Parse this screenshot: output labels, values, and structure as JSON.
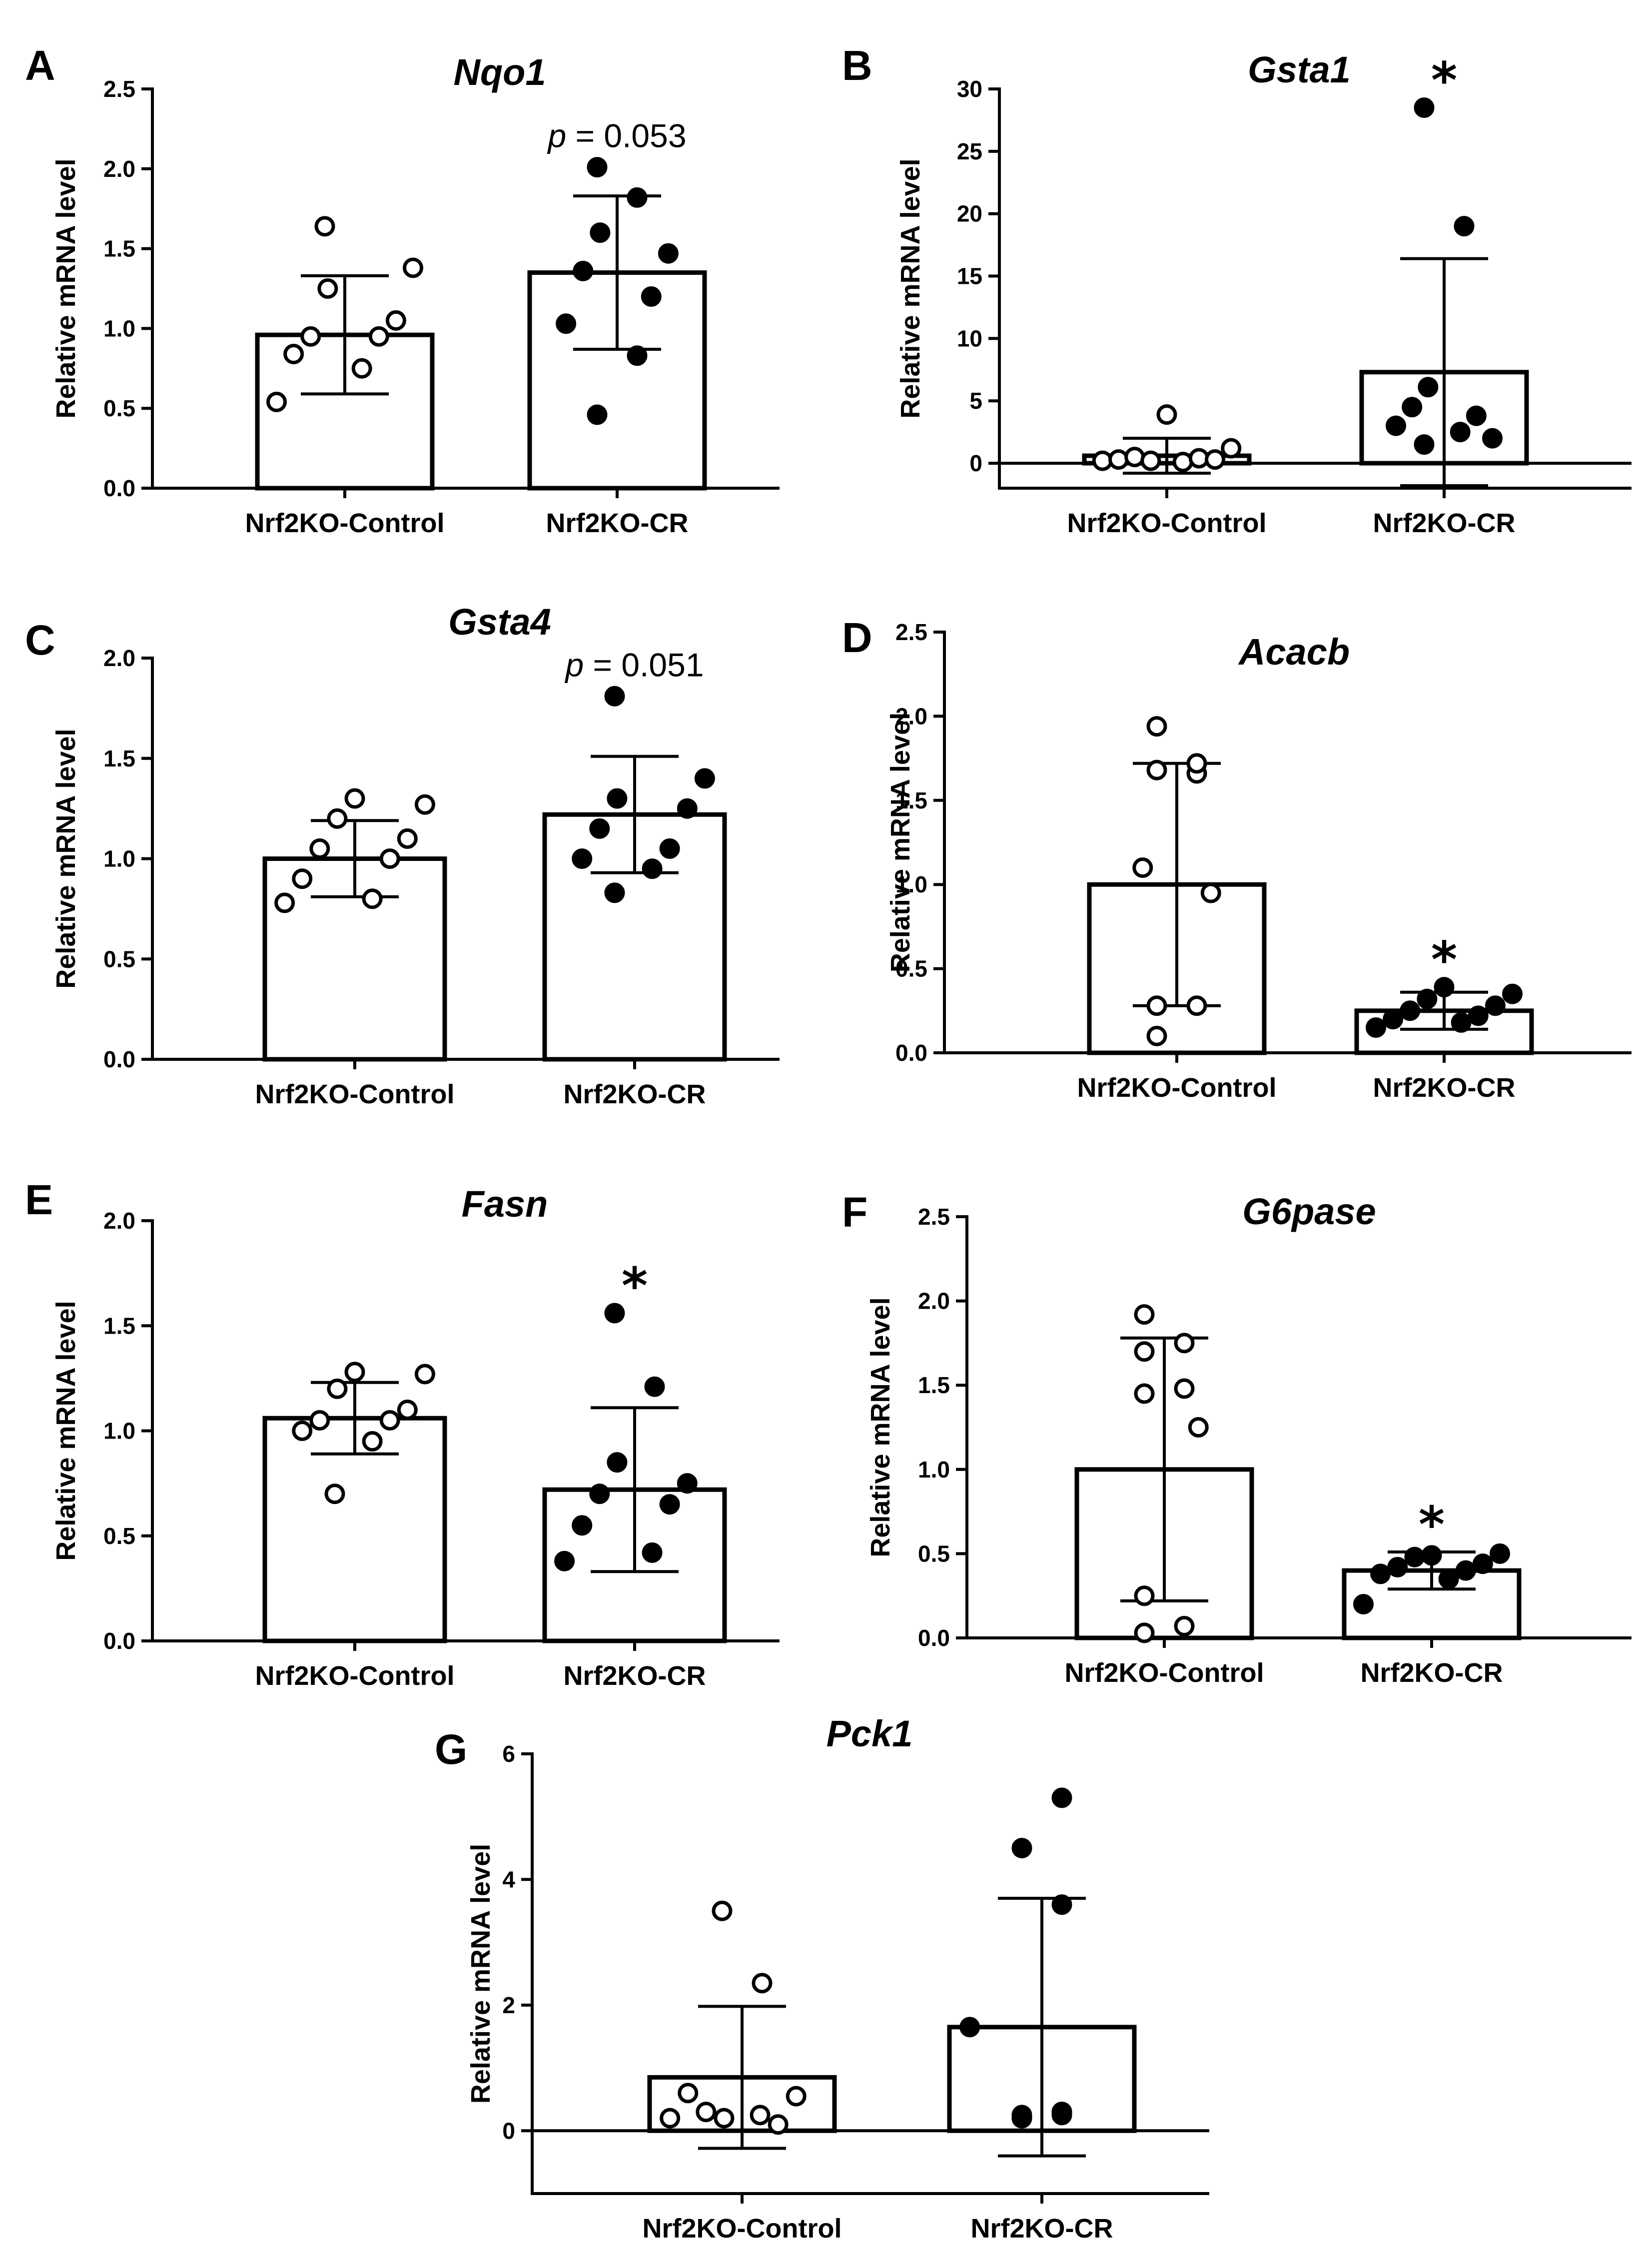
{
  "figure": {
    "panels": [
      {
        "letter": "A"
      },
      {
        "letter": "B"
      },
      {
        "letter": "C"
      },
      {
        "letter": "D"
      },
      {
        "letter": "E"
      },
      {
        "letter": "F"
      },
      {
        "letter": "G"
      }
    ]
  },
  "chart_data": [
    {
      "type": "bar",
      "panel": "A",
      "title": "Nqo1",
      "ylabel": "Relative mRNA level",
      "categories": [
        "Nrf2KO-Control",
        "Nrf2KO-CR"
      ],
      "ylim": [
        0,
        2.5
      ],
      "yticks": [
        "0.0",
        "0.5",
        "1.0",
        "1.5",
        "2.0",
        "2.5"
      ],
      "means": [
        0.96,
        1.35
      ],
      "sd": [
        0.37,
        0.48
      ],
      "points": [
        [
          0.54,
          0.75,
          0.84,
          0.95,
          0.95,
          1.05,
          1.25,
          1.38,
          1.64
        ],
        [
          0.46,
          0.83,
          1.03,
          1.2,
          1.36,
          1.47,
          1.6,
          1.82,
          2.01
        ]
      ],
      "filled": [
        false,
        true
      ],
      "annotation": {
        "prefix": "p",
        "text": " = 0.053",
        "category": 1
      }
    },
    {
      "type": "bar",
      "panel": "B",
      "title": "Gsta1",
      "ylabel": "Relative mRNA level",
      "categories": [
        "Nrf2KO-Control",
        "Nrf2KO-CR"
      ],
      "ylim": [
        -2,
        30
      ],
      "yticks": [
        "0",
        "5",
        "10",
        "15",
        "20",
        "25",
        "30"
      ],
      "zero_line": true,
      "means": [
        0.6,
        7.3
      ],
      "sd": [
        1.4,
        9.1
      ],
      "points": [
        [
          0.2,
          0.1,
          0.3,
          0.4,
          0.5,
          0.3,
          0.2,
          1.2,
          3.9
        ],
        [
          1.5,
          2.5,
          3.0,
          3.8,
          4.5,
          2.0,
          6.1,
          19.0,
          28.5
        ]
      ],
      "filled": [
        false,
        true
      ],
      "annotation": {
        "text": "*",
        "category": 1
      }
    },
    {
      "type": "bar",
      "panel": "C",
      "title": "Gsta4",
      "ylabel": "Relative mRNA level",
      "categories": [
        "Nrf2KO-Control",
        "Nrf2KO-CR"
      ],
      "ylim": [
        0,
        2.0
      ],
      "yticks": [
        "0.0",
        "0.5",
        "1.0",
        "1.5",
        "2.0"
      ],
      "means": [
        1.0,
        1.22
      ],
      "sd": [
        0.19,
        0.29
      ],
      "points": [
        [
          0.78,
          0.8,
          0.9,
          1.0,
          1.05,
          1.1,
          1.2,
          1.27,
          1.3
        ],
        [
          0.83,
          0.95,
          1.0,
          1.05,
          1.15,
          1.25,
          1.3,
          1.4,
          1.81
        ]
      ],
      "filled": [
        false,
        true
      ],
      "annotation": {
        "prefix": "p",
        "text": " = 0.051",
        "category": 1
      }
    },
    {
      "type": "bar",
      "panel": "D",
      "title": "Acacb",
      "ylabel": "Relative mRNA level",
      "categories": [
        "Nrf2KO-Control",
        "Nrf2KO-CR"
      ],
      "ylim": [
        0,
        2.5
      ],
      "yticks": [
        "0.0",
        "0.5",
        "1.0",
        "1.5",
        "2.0",
        "2.5"
      ],
      "means": [
        1.0,
        0.25
      ],
      "sd": [
        0.72,
        0.11
      ],
      "points": [
        [
          0.1,
          0.28,
          0.28,
          0.95,
          1.1,
          1.66,
          1.68,
          1.72,
          1.94
        ],
        [
          0.15,
          0.18,
          0.2,
          0.22,
          0.25,
          0.28,
          0.32,
          0.35,
          0.39
        ]
      ],
      "filled": [
        false,
        true
      ],
      "annotation": {
        "text": "*",
        "category": 1
      }
    },
    {
      "type": "bar",
      "panel": "E",
      "title": "Fasn",
      "ylabel": "Relative mRNA level",
      "categories": [
        "Nrf2KO-Control",
        "Nrf2KO-CR"
      ],
      "ylim": [
        0,
        2.0
      ],
      "yticks": [
        "0.0",
        "0.5",
        "1.0",
        "1.5",
        "2.0"
      ],
      "means": [
        1.06,
        0.72
      ],
      "sd": [
        0.17,
        0.39
      ],
      "points": [
        [
          0.7,
          0.95,
          1.0,
          1.05,
          1.05,
          1.1,
          1.2,
          1.27,
          1.28
        ],
        [
          0.38,
          0.42,
          0.55,
          0.65,
          0.7,
          0.75,
          0.85,
          1.21,
          1.56
        ]
      ],
      "filled": [
        false,
        true
      ],
      "annotation": {
        "text": "*",
        "category": 1
      }
    },
    {
      "type": "bar",
      "panel": "F",
      "title": "G6pase",
      "ylabel": "Relative mRNA level",
      "categories": [
        "Nrf2KO-Control",
        "Nrf2KO-CR"
      ],
      "ylim": [
        0,
        2.5
      ],
      "yticks": [
        "0.0",
        "0.5",
        "1.0",
        "1.5",
        "2.0",
        "2.5"
      ],
      "means": [
        1.0,
        0.4
      ],
      "sd": [
        0.78,
        0.11
      ],
      "points": [
        [
          0.03,
          0.07,
          0.25,
          1.25,
          1.45,
          1.48,
          1.7,
          1.75,
          1.92
        ],
        [
          0.2,
          0.35,
          0.38,
          0.4,
          0.42,
          0.44,
          0.48,
          0.5,
          0.49
        ]
      ],
      "filled": [
        false,
        true
      ],
      "annotation": {
        "text": "*",
        "category": 1
      }
    },
    {
      "type": "bar",
      "panel": "G",
      "title": "Pck1",
      "ylabel": "Relative mRNA level",
      "categories": [
        "Nrf2KO-Control",
        "Nrf2KO-CR"
      ],
      "ylim": [
        -1,
        6
      ],
      "yticks": [
        "0",
        "2",
        "4",
        "6"
      ],
      "zero_line": true,
      "means": [
        0.85,
        1.65
      ],
      "sd": [
        1.13,
        2.05
      ],
      "points": [
        [
          0.2,
          0.25,
          0.6,
          0.1,
          0.3,
          0.55,
          0.2,
          2.35,
          3.5
        ],
        [
          0.2,
          0.3,
          0.25,
          0.3,
          0.2,
          0.25,
          1.65,
          3.6,
          4.5,
          5.3
        ]
      ],
      "filled": [
        false,
        true
      ]
    }
  ]
}
